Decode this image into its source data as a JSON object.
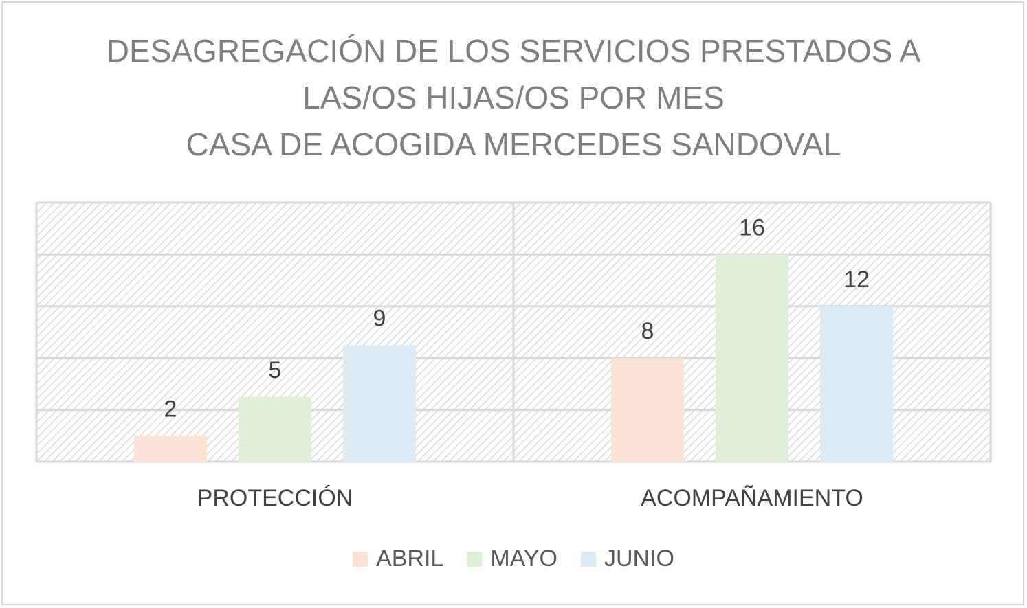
{
  "chart_data": {
    "type": "bar",
    "title_lines": [
      "DESAGREGACIÓN DE LOS SERVICIOS PRESTADOS A",
      "LAS/OS HIJAS/OS POR MES",
      "CASA DE ACOGIDA MERCEDES SANDOVAL"
    ],
    "categories": [
      "PROTECCIÓN",
      "ACOMPAÑAMIENTO"
    ],
    "series": [
      {
        "name": "ABRIL",
        "color": "#fbe5d6",
        "values": [
          2,
          8
        ]
      },
      {
        "name": "MAYO",
        "color": "#e2f0d9",
        "values": [
          5,
          16
        ]
      },
      {
        "name": "JUNIO",
        "color": "#deebf7",
        "values": [
          9,
          12
        ]
      }
    ],
    "ylim": [
      0,
      20
    ],
    "grid": true,
    "legend_position": "bottom",
    "data_labels": true,
    "colors": {
      "title": "#7f7f7f",
      "gridline": "#d9d9d9",
      "plot_border": "#d9d9d9",
      "hatch": "#d9d9d9",
      "label": "#404040"
    }
  }
}
